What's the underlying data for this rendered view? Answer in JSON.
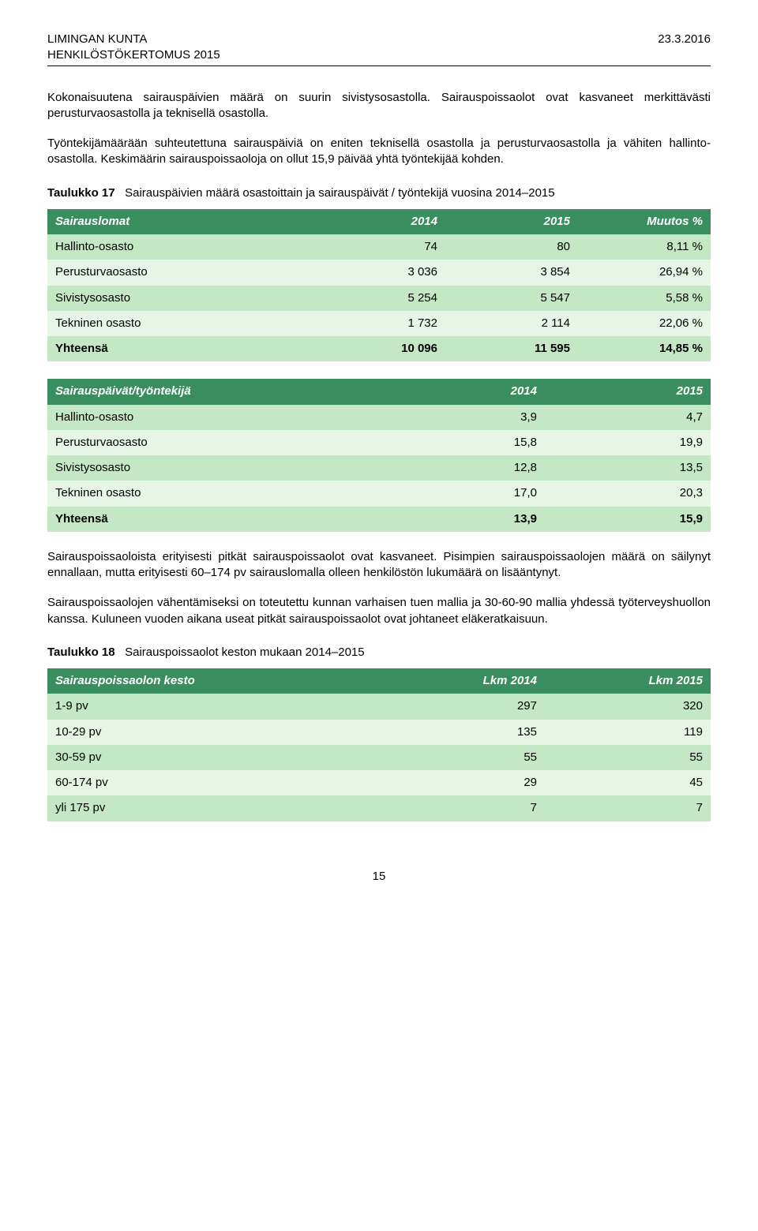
{
  "header": {
    "left_line1": "LIMINGAN KUNTA",
    "left_line2": "HENKILÖSTÖKERTOMUS 2015",
    "right": "23.3.2016"
  },
  "paragraphs": {
    "p1": "Kokonaisuutena sairauspäivien määrä on suurin sivistysosastolla. Sairauspoissaolot ovat kasvaneet merkittävästi perusturvaosastolla ja teknisellä osastolla.",
    "p2": "Työntekijämäärään suhteutettuna sairauspäiviä on eniten teknisellä osastolla ja perusturvaosastolla ja vähiten hallinto-osastolla. Keskimäärin sairauspoissaoloja on ollut 15,9 päivää yhtä työntekijää kohden.",
    "p3": "Sairauspoissaoloista erityisesti pitkät sairauspoissaolot ovat kasvaneet. Pisimpien sairauspoissaolojen määrä on säilynyt ennallaan, mutta erityisesti 60–174 pv sairauslomalla olleen henkilöstön lukumäärä on lisääntynyt.",
    "p4": "Sairauspoissaolojen vähentämiseksi on toteutettu kunnan varhaisen tuen mallia ja 30-60-90 mallia yhdessä työterveyshuollon kanssa. Kuluneen vuoden aikana useat pitkät sairauspoissaolot ovat johtaneet eläkeratkaisuun."
  },
  "table17": {
    "title_bold": "Taulukko 17",
    "title_rest": "Sairauspäivien määrä osastoittain ja sairauspäivät / työntekijä vuosina 2014–2015",
    "header_bg": "#3a8d5d",
    "row_even_bg": "#c4e7c4",
    "row_odd_bg": "#e6f5e6",
    "columns": [
      "Sairauslomat",
      "2014",
      "2015",
      "Muutos %"
    ],
    "rows": [
      [
        "Hallinto-osasto",
        "74",
        "80",
        "8,11 %"
      ],
      [
        "Perusturvaosasto",
        "3 036",
        "3 854",
        "26,94 %"
      ],
      [
        "Sivistysosasto",
        "5 254",
        "5 547",
        "5,58 %"
      ],
      [
        "Tekninen osasto",
        "1 732",
        "2 114",
        "22,06 %"
      ]
    ],
    "total": [
      "Yhteensä",
      "10 096",
      "11 595",
      "14,85 %"
    ]
  },
  "table17b": {
    "header_bg": "#3a8d5d",
    "row_even_bg": "#c4e7c4",
    "row_odd_bg": "#e6f5e6",
    "columns": [
      "Sairauspäivät/työntekijä",
      "2014",
      "2015"
    ],
    "rows": [
      [
        "Hallinto-osasto",
        "3,9",
        "4,7"
      ],
      [
        "Perusturvaosasto",
        "15,8",
        "19,9"
      ],
      [
        "Sivistysosasto",
        "12,8",
        "13,5"
      ],
      [
        "Tekninen osasto",
        "17,0",
        "20,3"
      ]
    ],
    "total": [
      "Yhteensä",
      "13,9",
      "15,9"
    ]
  },
  "table18": {
    "title_bold": "Taulukko 18",
    "title_rest": "Sairauspoissaolot keston mukaan 2014–2015",
    "header_bg": "#3a8d5d",
    "row_even_bg": "#c4e7c4",
    "row_odd_bg": "#e6f5e6",
    "columns": [
      "Sairauspoissaolon kesto",
      "Lkm 2014",
      "Lkm 2015"
    ],
    "rows": [
      [
        "1-9 pv",
        "297",
        "320"
      ],
      [
        "10-29 pv",
        "135",
        "119"
      ],
      [
        "30-59 pv",
        "55",
        "55"
      ],
      [
        "60-174 pv",
        "29",
        "45"
      ],
      [
        "yli 175 pv",
        "7",
        "7"
      ]
    ]
  },
  "page_number": "15"
}
